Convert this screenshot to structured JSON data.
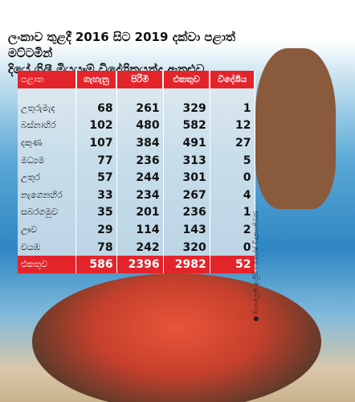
{
  "title": [
    "ලංකාව තුළදී 2016 සිට 2019 දක්වා පළාත් මට්ටමින්",
    "දියේ ගිලී මියයෑම් විදේශිකයන්ද ඇතුළුව"
  ],
  "table": {
    "header": [
      "පළාත",
      "ගැහැනු",
      "පිරිමි",
      "එකතුව",
      "විදේශීය"
    ],
    "rows": [
      [
        "උතුරුමැද",
        68,
        261,
        329,
        1
      ],
      [
        "බස්නාහිර",
        102,
        480,
        582,
        12
      ],
      [
        "දකුණ",
        107,
        384,
        491,
        27
      ],
      [
        "මධ්‍යම",
        77,
        236,
        313,
        5
      ],
      [
        "උතුර",
        57,
        244,
        301,
        0
      ],
      [
        "නැගෙනහිර",
        33,
        234,
        267,
        4
      ],
      [
        "සබරගමුව",
        35,
        201,
        236,
        1
      ],
      [
        "ඌව",
        29,
        114,
        143,
        2
      ],
      [
        "වයඹ",
        78,
        242,
        320,
        0
      ]
    ],
    "total": [
      "එකතුව",
      586,
      2396,
      2982,
      52
    ]
  },
  "credit": "● සිංහලෙන් ඉංග්‍රීසි : මහේෂ් විදානපතිරණ"
}
